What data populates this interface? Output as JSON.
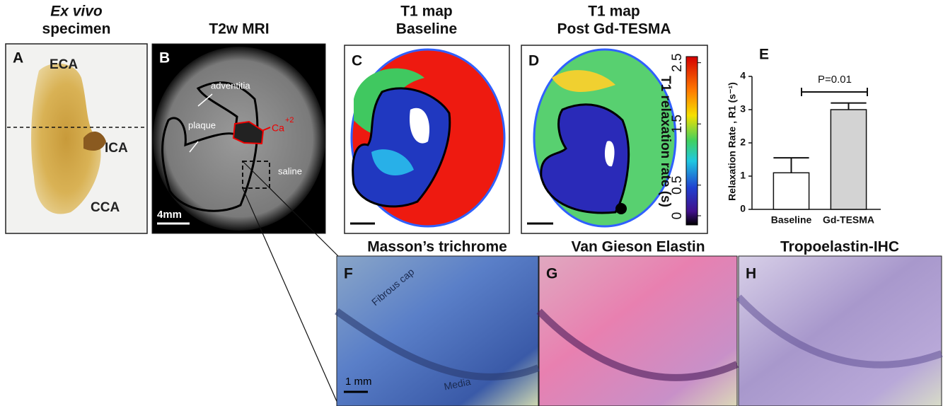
{
  "panels": {
    "a": {
      "letter": "A",
      "title_italic": "Ex vivo",
      "title": "specimen",
      "labels": {
        "eca": "ECA",
        "ica": "ICA",
        "cca": "CCA"
      }
    },
    "b": {
      "letter": "B",
      "title": "T2w MRI",
      "labels": {
        "adventitia": "adventitia",
        "plaque": "plaque",
        "saline": "saline",
        "calcium": "Ca",
        "calcium_charge": "+2"
      },
      "scale_bar": "4mm"
    },
    "c": {
      "letter": "C",
      "title_line1": "T1 map",
      "title_line2": "Baseline"
    },
    "d": {
      "letter": "D",
      "title_line1": "T1 map",
      "title_line2": "Post Gd-TESMA",
      "colorbar": {
        "label": "T1 relaxation rate (s)",
        "ticks": [
          0,
          0.5,
          1.5,
          2.5
        ],
        "lim": [
          -0.15,
          2.6
        ]
      }
    },
    "f": {
      "letter": "F",
      "title": "Masson’s trichrome",
      "labels": {
        "cap": "Fibrous cap",
        "media": "Media"
      },
      "scale_bar": "1 mm"
    },
    "g": {
      "letter": "G",
      "title": "Van Gieson Elastin"
    },
    "h": {
      "letter": "H",
      "title": "Tropoelastin-IHC"
    }
  },
  "chart_data": {
    "type": "bar",
    "letter": "E",
    "ylabel": "Relaxation Rate , R1 (s⁻¹)",
    "categories": [
      "Baseline",
      "Gd-TESMA"
    ],
    "values": [
      1.1,
      3.0
    ],
    "errors": [
      0.45,
      0.2
    ],
    "colors": [
      "#ffffff",
      "#d3d3d3"
    ],
    "ylim": [
      0,
      4
    ],
    "yticks": [
      0,
      1,
      2,
      3,
      4
    ],
    "annotation": "P=0.01"
  }
}
